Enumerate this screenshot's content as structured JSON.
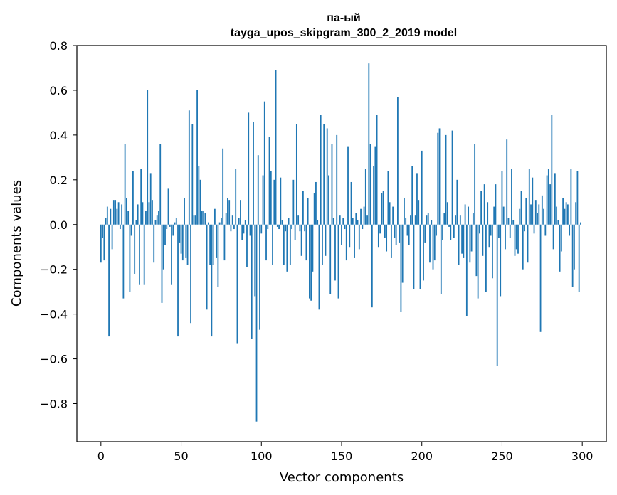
{
  "chart_data": {
    "type": "bar",
    "title": "па-ый",
    "subtitle": "tayga_upos_skipgram_300_2_2019 model",
    "xlabel": "Vector components",
    "ylabel": "Components values",
    "xlim": [
      -15,
      315
    ],
    "ylim": [
      -0.97,
      0.8
    ],
    "xticks": [
      0,
      50,
      100,
      150,
      200,
      250,
      300
    ],
    "yticks": [
      -0.8,
      -0.6,
      -0.4,
      -0.2,
      0.0,
      0.2,
      0.4,
      0.6,
      0.8
    ],
    "ytick_labels": [
      "−0.8",
      "−0.6",
      "−0.4",
      "−0.2",
      "0.0",
      "0.2",
      "0.4",
      "0.6",
      "0.8"
    ],
    "xtick_labels": [
      "0",
      "50",
      "100",
      "150",
      "200",
      "250",
      "300"
    ],
    "bar_color": "#1f77b4",
    "values": [
      -0.17,
      -0.06,
      -0.16,
      0.03,
      0.08,
      -0.5,
      0.07,
      -0.11,
      0.11,
      0.11,
      0.07,
      0.1,
      -0.02,
      0.09,
      -0.33,
      0.36,
      0.12,
      0.06,
      -0.3,
      -0.05,
      0.24,
      -0.22,
      0.02,
      0.09,
      -0.27,
      0.25,
      0.1,
      -0.27,
      0.06,
      0.6,
      0.1,
      0.23,
      0.11,
      -0.17,
      0.02,
      0.04,
      0.06,
      0.36,
      -0.35,
      -0.2,
      -0.09,
      -0.02,
      0.16,
      -0.01,
      -0.27,
      -0.05,
      0.01,
      0.03,
      -0.5,
      -0.08,
      -0.13,
      -0.16,
      0.12,
      -0.15,
      -0.18,
      0.51,
      -0.44,
      0.45,
      0.04,
      0.04,
      0.6,
      0.26,
      0.2,
      0.06,
      0.06,
      0.05,
      -0.38,
      0.01,
      -0.18,
      -0.5,
      -0.18,
      0.07,
      -0.15,
      -0.28,
      0.01,
      0.03,
      0.34,
      -0.16,
      0.05,
      0.12,
      0.11,
      -0.03,
      0.04,
      -0.02,
      0.25,
      -0.53,
      0.03,
      0.11,
      -0.07,
      -0.04,
      0.02,
      -0.19,
      0.5,
      -0.05,
      -0.51,
      0.46,
      -0.32,
      -0.88,
      0.31,
      -0.47,
      -0.04,
      0.22,
      0.55,
      -0.16,
      -0.02,
      0.39,
      0.24,
      -0.18,
      0.2,
      0.69,
      -0.01,
      -0.02,
      0.21,
      0.02,
      -0.18,
      -0.03,
      -0.21,
      0.03,
      -0.18,
      -0.02,
      0.2,
      -0.07,
      0.45,
      0.04,
      -0.03,
      -0.14,
      0.15,
      -0.03,
      -0.16,
      0.12,
      -0.33,
      -0.34,
      -0.21,
      0.14,
      0.19,
      0.02,
      -0.38,
      0.49,
      -0.18,
      0.45,
      -0.14,
      0.43,
      0.22,
      -0.31,
      0.36,
      0.03,
      -0.25,
      0.4,
      -0.33,
      0.04,
      -0.09,
      0.03,
      -0.02,
      -0.16,
      0.35,
      -0.1,
      0.19,
      0.03,
      -0.15,
      0.05,
      0.02,
      -0.11,
      0.07,
      -0.02,
      0.08,
      0.25,
      0.04,
      0.72,
      0.36,
      -0.37,
      0.26,
      0.35,
      0.49,
      -0.1,
      -0.04,
      0.14,
      0.15,
      -0.06,
      -0.12,
      0.24,
      0.1,
      -0.15,
      0.08,
      -0.06,
      -0.09,
      0.57,
      -0.08,
      -0.39,
      -0.26,
      0.12,
      0.03,
      -0.05,
      -0.09,
      0.04,
      0.26,
      -0.29,
      0.04,
      0.23,
      0.11,
      -0.29,
      0.33,
      -0.25,
      -0.08,
      0.04,
      0.05,
      -0.17,
      0.02,
      -0.2,
      -0.16,
      -0.05,
      0.41,
      0.43,
      -0.31,
      -0.07,
      0.05,
      0.4,
      0.1,
      -0.01,
      -0.07,
      0.42,
      -0.06,
      0.04,
      0.2,
      -0.18,
      0.04,
      -0.13,
      -0.15,
      0.09,
      -0.41,
      0.08,
      -0.17,
      -0.12,
      0.05,
      0.36,
      -0.23,
      -0.33,
      -0.04,
      0.15,
      -0.14,
      0.18,
      -0.3,
      0.1,
      -0.1,
      -0.05,
      -0.24,
      0.08,
      0.18,
      -0.63,
      -0.06,
      -0.32,
      0.24,
      0.08,
      -0.11,
      0.38,
      0.03,
      -0.06,
      0.25,
      0.02,
      -0.14,
      -0.11,
      -0.13,
      0.07,
      0.15,
      -0.2,
      -0.03,
      0.12,
      -0.17,
      0.25,
      0.09,
      0.21,
      -0.04,
      0.11,
      0.05,
      0.09,
      -0.48,
      0.13,
      0.07,
      -0.05,
      0.22,
      0.25,
      0.18,
      0.49,
      -0.11,
      0.23,
      0.08,
      0.02,
      -0.21,
      -0.12,
      0.12,
      0.07,
      0.1,
      0.09,
      -0.05,
      0.25,
      -0.28,
      -0.2,
      0.1,
      0.24,
      -0.3,
      0.01
    ]
  }
}
